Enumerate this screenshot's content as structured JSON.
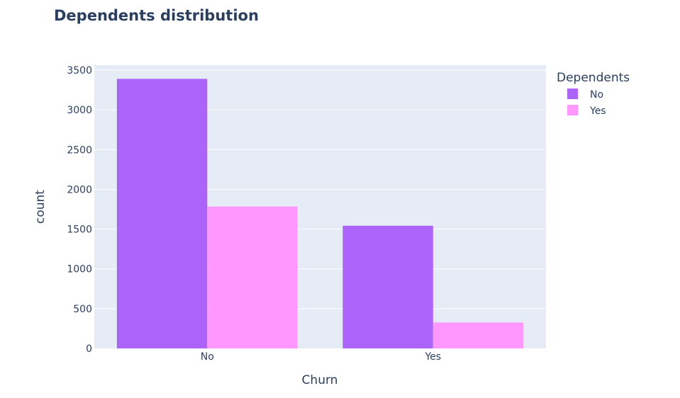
{
  "chart_data": {
    "type": "bar",
    "title": "Dependents distribution",
    "xlabel": "Churn",
    "ylabel": "count",
    "categories": [
      "No",
      "Yes"
    ],
    "series": [
      {
        "name": "No",
        "values": [
          3390,
          1543
        ],
        "color": "#ab63fa"
      },
      {
        "name": "Yes",
        "values": [
          1784,
          326
        ],
        "color": "#ff97ff"
      }
    ],
    "ylim": [
      0,
      3500
    ],
    "yticks": [
      0,
      500,
      1000,
      1500,
      2000,
      2500,
      3000,
      3500
    ],
    "legend": {
      "title": "Dependents",
      "placement": "top-right"
    },
    "grid": true,
    "plot_background": "#e5ecf6",
    "barmode": "group"
  }
}
